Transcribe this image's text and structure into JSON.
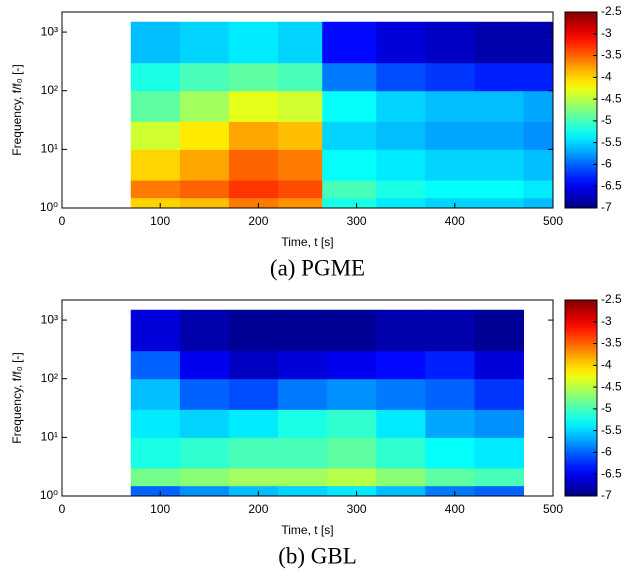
{
  "chart_data": [
    {
      "type": "heatmap",
      "caption": "(a) PGME",
      "xlabel": "Time, t [s]",
      "ylabel": "Frequency, f/f₀ [-]",
      "xlim": [
        0,
        500
      ],
      "xticks": [
        0,
        100,
        200,
        300,
        400,
        500
      ],
      "ylim": [
        1,
        2200
      ],
      "yscale": "log",
      "yticks": [
        {
          "value": 1,
          "label": "10⁰"
        },
        {
          "value": 10,
          "label": "10¹"
        },
        {
          "value": 100,
          "label": "10²"
        },
        {
          "value": 1000,
          "label": "10³"
        }
      ],
      "x_edges": [
        70,
        120,
        170,
        220,
        265,
        320,
        370,
        420,
        470,
        500
      ],
      "y_edges": [
        1,
        1.5,
        3,
        10,
        30,
        100,
        300,
        1500
      ],
      "z": [
        [
          -4.0,
          -3.9,
          -3.6,
          -3.7,
          -5.2,
          -5.4,
          -5.5,
          -5.5,
          -5.6
        ],
        [
          -3.6,
          -3.5,
          -3.3,
          -3.4,
          -5.0,
          -5.2,
          -5.3,
          -5.3,
          -5.4
        ],
        [
          -4.0,
          -3.8,
          -3.5,
          -3.6,
          -5.3,
          -5.4,
          -5.5,
          -5.5,
          -5.6
        ],
        [
          -4.4,
          -4.1,
          -3.8,
          -3.9,
          -5.5,
          -5.6,
          -5.7,
          -5.7,
          -5.8
        ],
        [
          -4.9,
          -4.6,
          -4.3,
          -4.4,
          -5.3,
          -5.5,
          -5.6,
          -5.6,
          -5.7
        ],
        [
          -5.2,
          -5.0,
          -4.9,
          -5.0,
          -5.9,
          -6.1,
          -6.2,
          -6.3,
          -6.3
        ],
        [
          -5.6,
          -5.5,
          -5.4,
          -5.5,
          -6.4,
          -6.6,
          -6.7,
          -6.8,
          -6.8
        ]
      ],
      "colormap": "jet",
      "clim": [
        -7,
        -2.5
      ],
      "cticks": [
        -2.5,
        -3,
        -3.5,
        -4,
        -4.5,
        -5,
        -5.5,
        -6,
        -6.5,
        -7
      ]
    },
    {
      "type": "heatmap",
      "caption": "(b) GBL",
      "xlabel": "Time, t [s]",
      "ylabel": "Frequency, f/f₀ [-]",
      "xlim": [
        0,
        500
      ],
      "xticks": [
        0,
        100,
        200,
        300,
        400,
        500
      ],
      "ylim": [
        1,
        2200
      ],
      "yscale": "log",
      "yticks": [
        {
          "value": 1,
          "label": "10⁰"
        },
        {
          "value": 10,
          "label": "10¹"
        },
        {
          "value": 100,
          "label": "10²"
        },
        {
          "value": 1000,
          "label": "10³"
        }
      ],
      "x_edges": [
        70,
        120,
        170,
        220,
        270,
        320,
        370,
        420,
        470
      ],
      "y_edges": [
        1,
        1.5,
        3,
        10,
        30,
        100,
        300,
        1500
      ],
      "z": [
        [
          -6.0,
          -5.8,
          -5.6,
          -5.5,
          -5.4,
          -5.6,
          -5.9,
          -6.0
        ],
        [
          -4.8,
          -4.7,
          -4.6,
          -4.6,
          -4.5,
          -4.7,
          -4.9,
          -5.0
        ],
        [
          -5.2,
          -5.1,
          -5.0,
          -5.0,
          -4.9,
          -5.1,
          -5.3,
          -5.4
        ],
        [
          -5.4,
          -5.5,
          -5.4,
          -5.2,
          -5.1,
          -5.4,
          -5.7,
          -5.8
        ],
        [
          -5.6,
          -6.0,
          -6.1,
          -5.9,
          -5.8,
          -5.9,
          -6.0,
          -6.2
        ],
        [
          -6.0,
          -6.5,
          -6.7,
          -6.6,
          -6.5,
          -6.4,
          -6.3,
          -6.6
        ],
        [
          -6.6,
          -6.8,
          -6.9,
          -6.9,
          -6.9,
          -6.8,
          -6.8,
          -6.9
        ]
      ],
      "colormap": "jet",
      "clim": [
        -7,
        -2.5
      ],
      "cticks": [
        -2.5,
        -3,
        -3.5,
        -4,
        -4.5,
        -5,
        -5.5,
        -6,
        -6.5,
        -7
      ]
    }
  ]
}
